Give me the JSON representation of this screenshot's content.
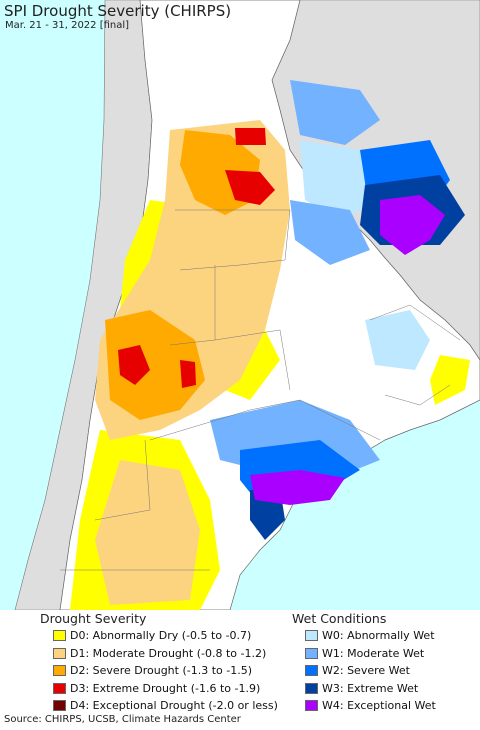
{
  "header": {
    "title": "SPI Drought Severity (CHIRPS)",
    "subtitle": "Mar. 21 - 31, 2022 [final]"
  },
  "legend": {
    "drought_heading": "Drought Severity",
    "wet_heading": "Wet Conditions",
    "drought": [
      {
        "label": "D0: Abnormally Dry (-0.5 to -0.7)",
        "color": "#ffff00"
      },
      {
        "label": "D1: Moderate Drought (-0.8 to -1.2)",
        "color": "#fcd37f"
      },
      {
        "label": "D2: Severe Drought (-1.3 to -1.5)",
        "color": "#ffaa00"
      },
      {
        "label": "D3: Extreme Drought (-1.6 to -1.9)",
        "color": "#e60000"
      },
      {
        "label": "D4: Exceptional Drought (-2.0 or less)",
        "color": "#730000"
      }
    ],
    "wet": [
      {
        "label": "W0: Abnormally Wet",
        "color": "#bee8ff"
      },
      {
        "label": "W1: Moderate Wet",
        "color": "#73b2ff"
      },
      {
        "label": "W2: Severe Wet",
        "color": "#0070ff"
      },
      {
        "label": "W3: Extreme Wet",
        "color": "#0040a0"
      },
      {
        "label": "W4: Exceptional Wet",
        "color": "#aa00ff"
      }
    ]
  },
  "map": {
    "ocean_color": "#ccffff",
    "land_color": "#ffffff",
    "neighbor_color": "#dedede"
  },
  "footer": {
    "source": "Source: CHIRPS, UCSB, Climate Hazards Center"
  }
}
